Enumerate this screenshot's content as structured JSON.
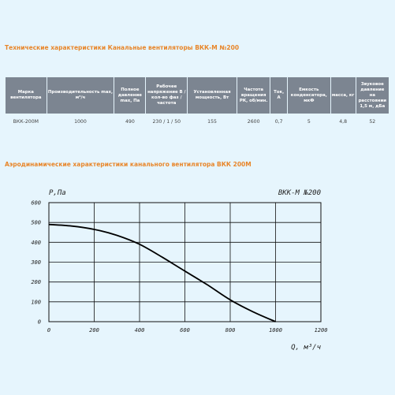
{
  "spec_section": {
    "title": "Технические характеристики Канальные вентиляторы ВКК-М №200",
    "headers": [
      "Марка вентилятора",
      "Производительность max, м³/ч",
      "Полное давление max, Па",
      "Рабочее напряжение В / кол-во фаз / частота",
      "Установленная мощность, Вт",
      "Частота вращения РК, об/мин.",
      "Ток, А",
      "Емкость конденсатора, мкФ",
      "масса, кг",
      "Звуковое давление на расстоянии 1,5 м, дБа"
    ],
    "row": [
      "ВКК-200М",
      "1000",
      "490",
      "230 / 1 / 50",
      "155",
      "2600",
      "0,7",
      "5",
      "4,8",
      "52"
    ]
  },
  "chart_section": {
    "title": "Аэродинамические характеристики канального вентилятора ВКК 200М"
  },
  "chart_data": {
    "type": "line",
    "title": "ВКК-М №200",
    "xlabel": "Q, м³/ч",
    "ylabel": "P,Па",
    "xlim": [
      0,
      1200
    ],
    "ylim": [
      0,
      600
    ],
    "x_ticks": [
      "0",
      "200",
      "400",
      "600",
      "800",
      "1000",
      "1200"
    ],
    "y_ticks": [
      "0",
      "100",
      "200",
      "300",
      "400",
      "500",
      "600"
    ],
    "grid": true,
    "series": [
      {
        "x": [
          0,
          100,
          200,
          300,
          400,
          500,
          600,
          700,
          800,
          900,
          1000
        ],
        "y": [
          490,
          482,
          465,
          435,
          390,
          325,
          255,
          185,
          110,
          50,
          0
        ]
      }
    ]
  }
}
